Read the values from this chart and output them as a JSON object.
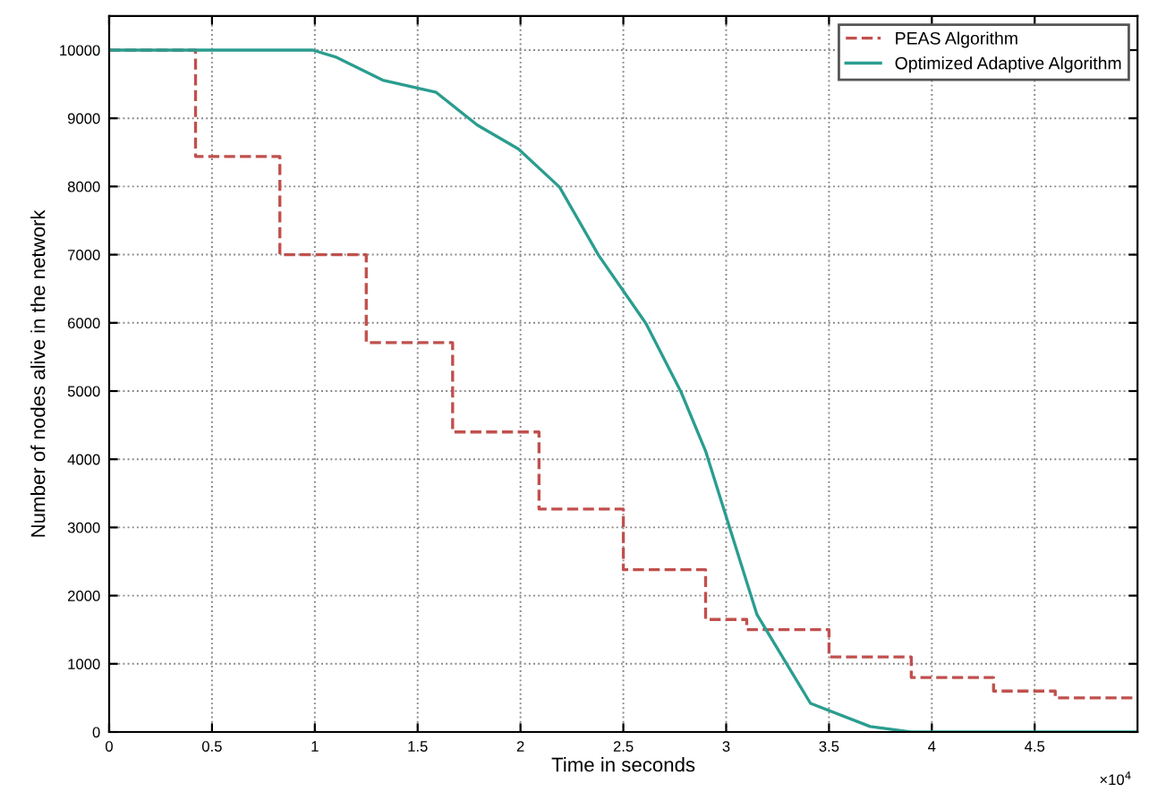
{
  "chart_data": {
    "type": "step",
    "xlabel": "Time in seconds",
    "ylabel": "Number of nodes alive in the network",
    "annotations": [
      "×10$^{4}$"
    ],
    "xlim": [
      0,
      5
    ],
    "xticks": [
      0,
      0.5,
      1,
      1.5,
      2,
      2.5,
      3,
      3.5,
      4,
      4.5
    ],
    "ylim": [
      0,
      10500
    ],
    "yticks": [
      0,
      1000,
      2000,
      3000,
      4000,
      5000,
      6000,
      7000,
      8000,
      9000,
      10000
    ],
    "grid": true,
    "legend": "top right",
    "series": [
      {
        "name": "PEAS Algorithm",
        "color": "#c0504d",
        "line_style": "dashed",
        "x": [
          0,
          0.42,
          0.83,
          1.25,
          1.67,
          2.09,
          2.5,
          2.9,
          3.1,
          3.5,
          3.9,
          4.3,
          4.6,
          5
        ],
        "values": [
          10000,
          8440,
          7000,
          5710,
          4400,
          3270,
          2380,
          1650,
          1500,
          1100,
          800,
          600,
          500,
          500
        ]
      },
      {
        "name": "Optimized Adaptive Algorithm",
        "type": "line",
        "color": "#2a9d8f",
        "line_style": "solid",
        "x": [
          0,
          0.99,
          1.1,
          1.33,
          1.59,
          1.79,
          1.99,
          2.19,
          2.38,
          2.61,
          2.78,
          2.9,
          3.0,
          3.15,
          3.41,
          3.7,
          3.9,
          5
        ],
        "values": [
          10000,
          10000,
          9900,
          9560,
          9380,
          8900,
          8550,
          7990,
          6990,
          5990,
          4990,
          4120,
          3160,
          1720,
          420,
          80,
          0,
          0
        ]
      }
    ]
  }
}
